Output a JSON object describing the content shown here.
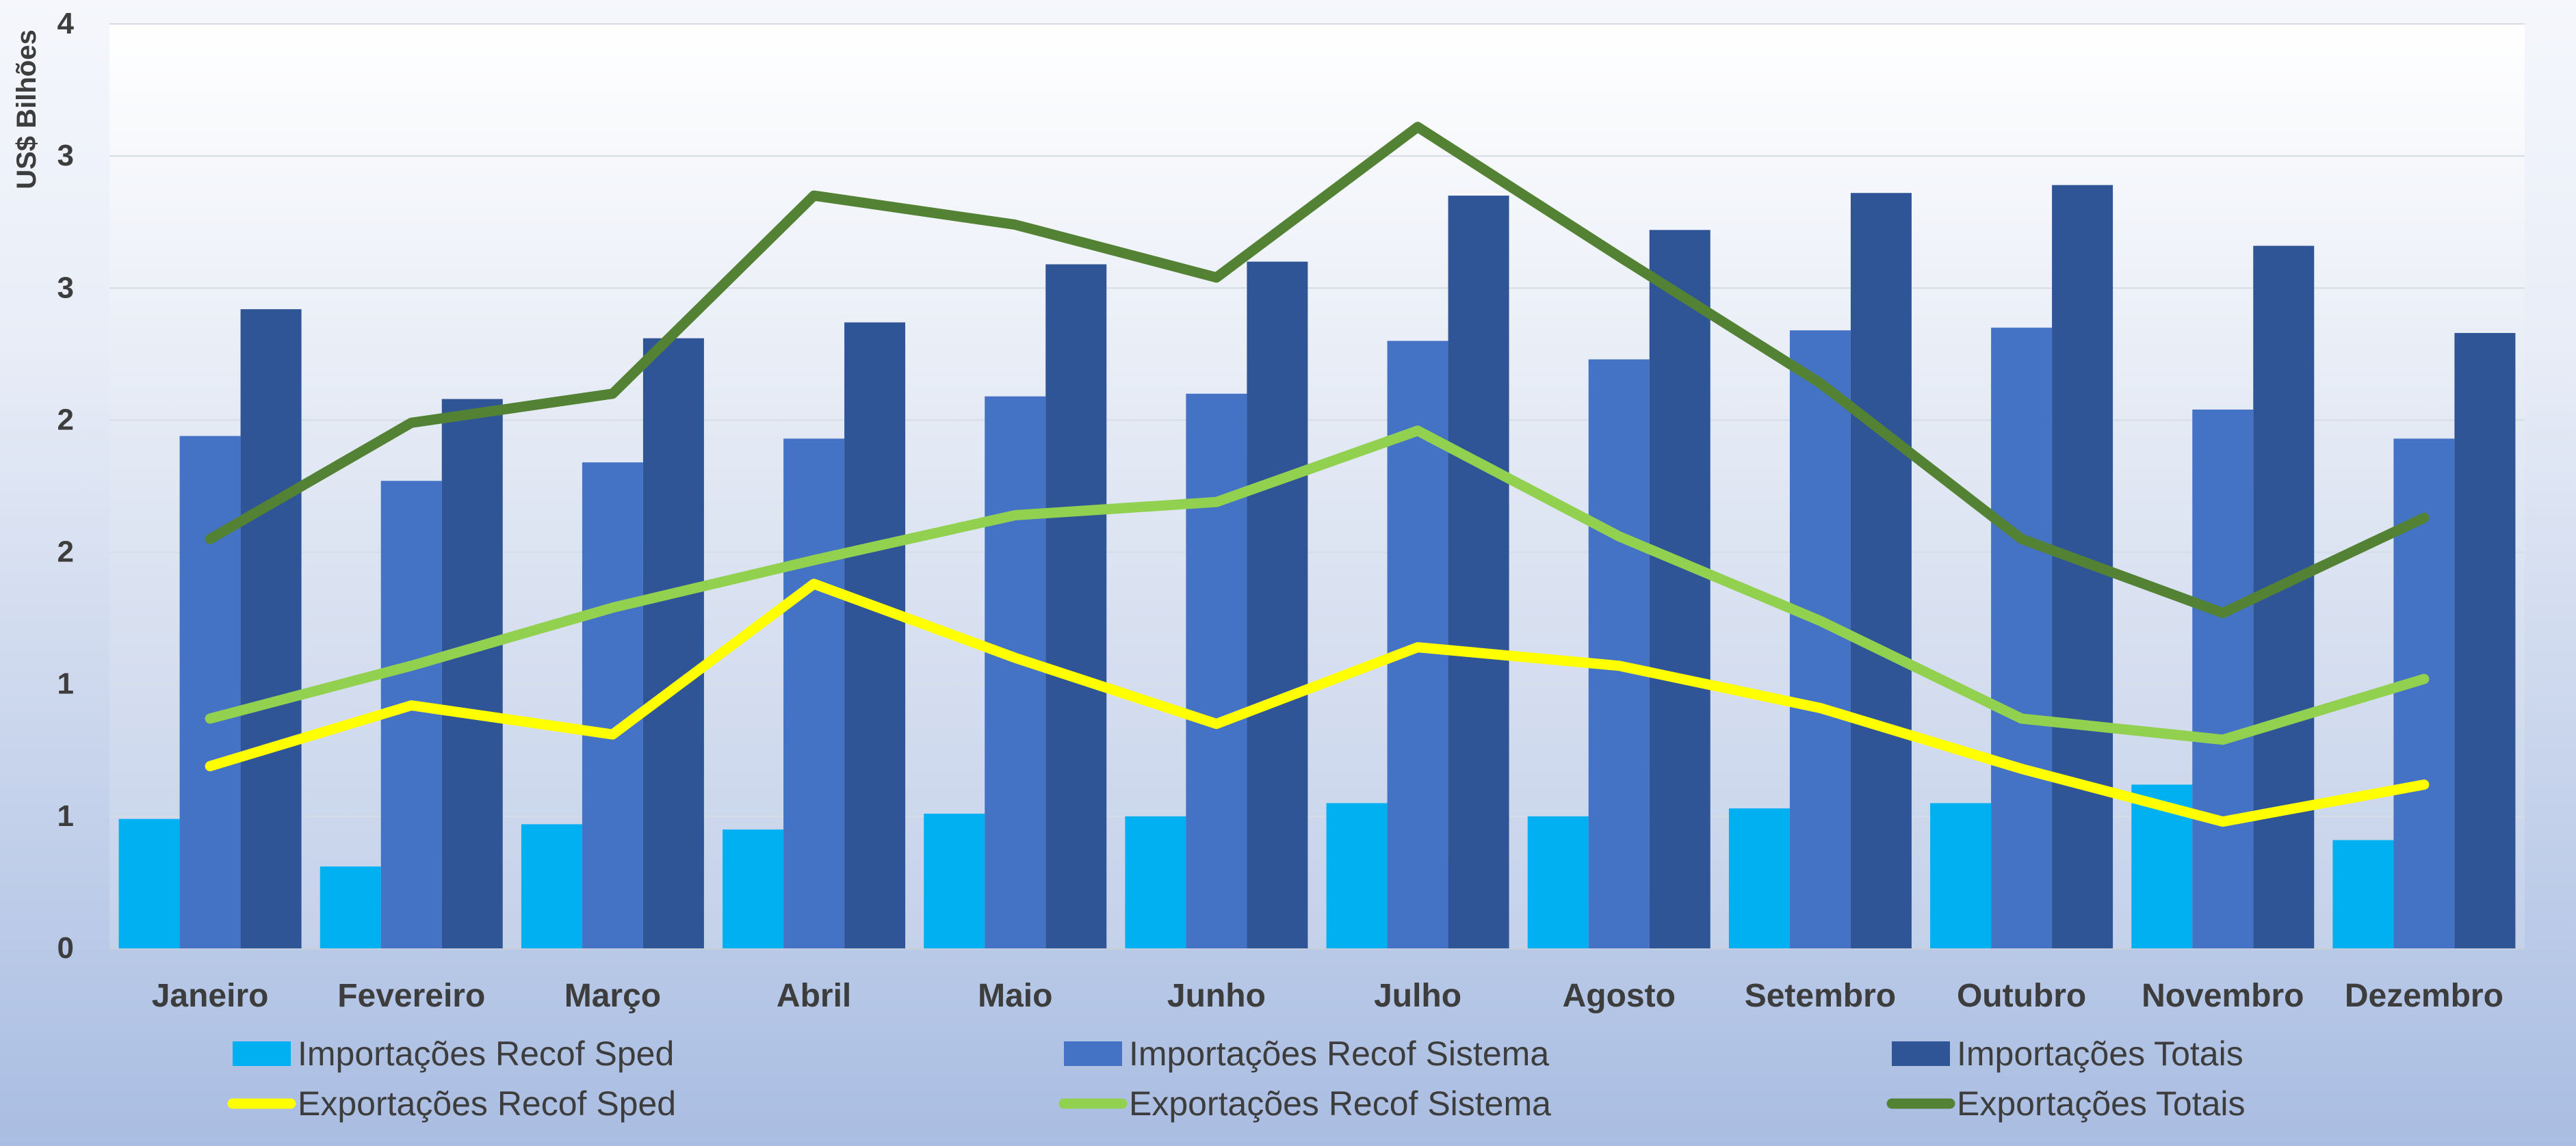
{
  "chart_data": {
    "type": "bar",
    "ylabel": "US$ Bilhões",
    "ylim": [
      0,
      3.5
    ],
    "yticks": [
      0,
      0.5,
      1,
      1.5,
      2,
      2.5,
      3,
      3.5
    ],
    "ytick_labels": [
      "0",
      "1",
      "1",
      "2",
      "2",
      "3",
      "3",
      "4"
    ],
    "grid": true,
    "legend_position": "bottom",
    "categories": [
      "Janeiro",
      "Fevereiro",
      "Março",
      "Abril",
      "Maio",
      "Junho",
      "Julho",
      "Agosto",
      "Setembro",
      "Outubro",
      "Novembro",
      "Dezembro"
    ],
    "bar_series": [
      {
        "name": "Importações Recof Sped",
        "color": "#00b0f0",
        "values": [
          0.49,
          0.31,
          0.47,
          0.45,
          0.51,
          0.5,
          0.55,
          0.5,
          0.53,
          0.55,
          0.62,
          0.41
        ]
      },
      {
        "name": "Importações Recof Sistema",
        "color": "#4472c4",
        "values": [
          1.94,
          1.77,
          1.84,
          1.93,
          2.09,
          2.1,
          2.3,
          2.23,
          2.34,
          2.35,
          2.04,
          1.93
        ]
      },
      {
        "name": "Importações Totais",
        "color": "#2f5597",
        "values": [
          2.42,
          2.08,
          2.31,
          2.37,
          2.59,
          2.6,
          2.85,
          2.72,
          2.86,
          2.89,
          2.66,
          2.33
        ]
      }
    ],
    "line_series": [
      {
        "name": "Exportações Recof Sped",
        "color": "#ffff00",
        "values": [
          0.69,
          0.92,
          0.81,
          1.38,
          1.1,
          0.85,
          1.14,
          1.07,
          0.91,
          0.68,
          0.48,
          0.62
        ]
      },
      {
        "name": "Exportações Recof Sistema",
        "color": "#92d050",
        "values": [
          0.87,
          1.07,
          1.29,
          1.47,
          1.64,
          1.69,
          1.96,
          1.56,
          1.24,
          0.87,
          0.79,
          1.02
        ]
      },
      {
        "name": "Exportações Totais",
        "color": "#548235",
        "values": [
          1.55,
          1.99,
          2.1,
          2.85,
          2.74,
          2.54,
          3.11,
          2.62,
          2.14,
          1.55,
          1.27,
          1.63
        ]
      }
    ]
  }
}
